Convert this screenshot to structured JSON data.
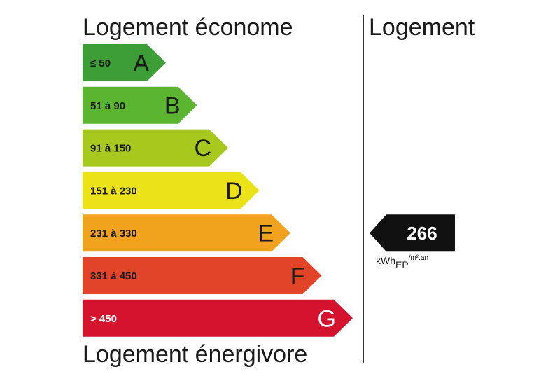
{
  "labels": {
    "top": "Logement économe",
    "bottom": "Logement énergivore",
    "right": "Logement"
  },
  "chart_data": {
    "type": "bar",
    "categories": [
      "A",
      "B",
      "C",
      "D",
      "E",
      "F",
      "G"
    ],
    "ranges": [
      "≤ 50",
      "51 à 90",
      "91 à 150",
      "151 à 230",
      "231 à 330",
      "331 à 450",
      "> 450"
    ],
    "colors": [
      "#3d9d36",
      "#5cb530",
      "#a7c81c",
      "#ece218",
      "#f2a31d",
      "#e2442a",
      "#d5132e"
    ],
    "light_text": [
      false,
      false,
      false,
      false,
      false,
      false,
      true
    ],
    "value": 266,
    "value_class": "E",
    "unit": {
      "main": "kWh",
      "sub": "EP",
      "rest": "/m².an"
    }
  }
}
